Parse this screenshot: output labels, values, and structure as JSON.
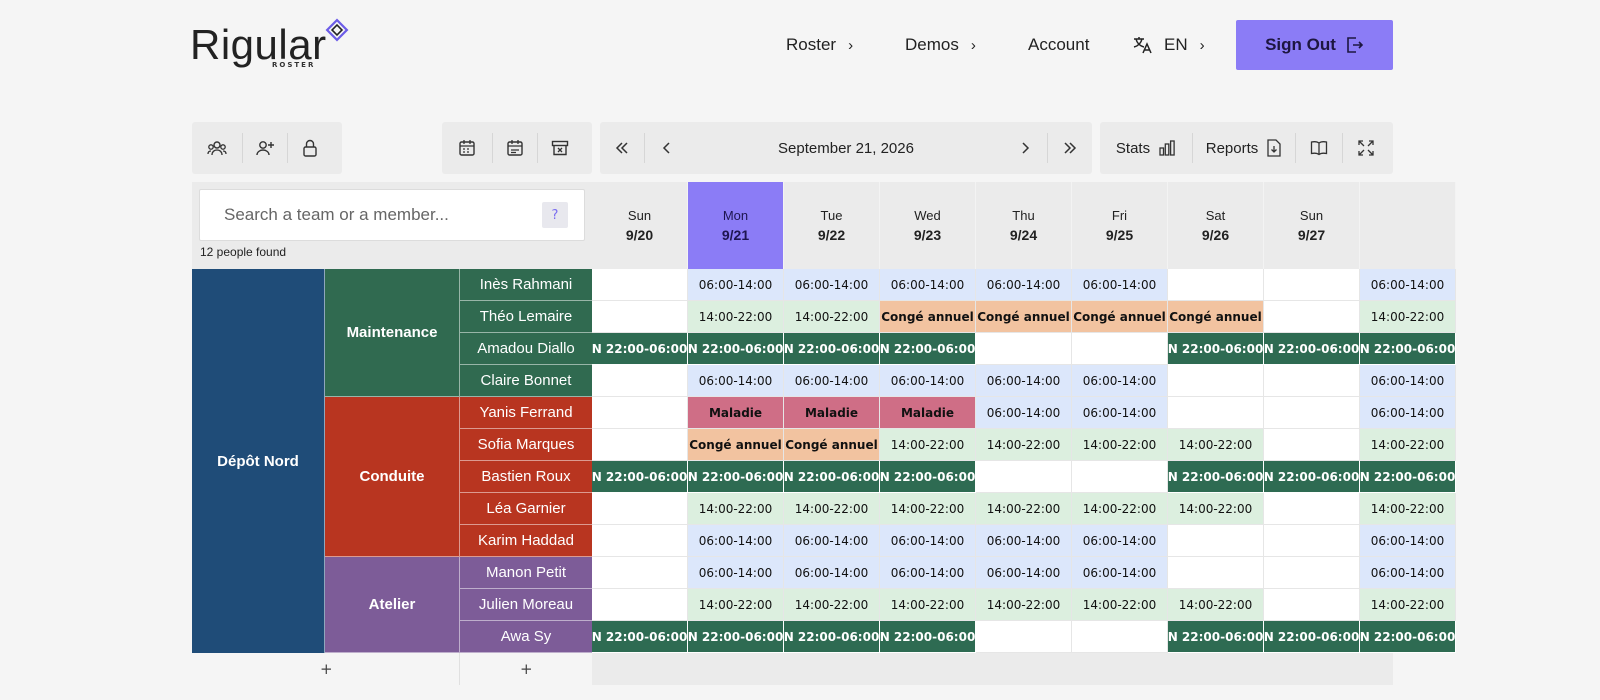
{
  "brand": {
    "name": "Rigular",
    "sub": "ROSTER"
  },
  "nav": {
    "roster": "Roster",
    "demos": "Demos",
    "account": "Account",
    "lang": "EN",
    "sign_out": "Sign Out"
  },
  "toolbar": {
    "date": "September 21, 2026",
    "stats": "Stats",
    "reports": "Reports"
  },
  "search": {
    "placeholder": "Search a team or a member...",
    "help": "?",
    "found": "12 people found"
  },
  "days": [
    {
      "name": "Sun",
      "date": "9/20"
    },
    {
      "name": "Mon",
      "date": "9/21"
    },
    {
      "name": "Tue",
      "date": "9/22"
    },
    {
      "name": "Wed",
      "date": "9/23"
    },
    {
      "name": "Thu",
      "date": "9/24"
    },
    {
      "name": "Fri",
      "date": "9/25"
    },
    {
      "name": "Sat",
      "date": "9/26"
    },
    {
      "name": "Sun",
      "date": "9/27"
    },
    {
      "name": "",
      "date": ""
    }
  ],
  "today_index": 1,
  "depot": "Dépôt Nord",
  "teams": [
    {
      "name": "Maintenance",
      "color": "#306a50",
      "members": 4
    },
    {
      "name": "Conduite",
      "color": "#b83520",
      "members": 5
    },
    {
      "name": "Atelier",
      "color": "#7d5c98",
      "members": 3
    }
  ],
  "members": [
    {
      "name": "Inès Rahmani",
      "team": 0,
      "shifts": [
        "",
        "06:00-14:00",
        "06:00-14:00",
        "06:00-14:00",
        "06:00-14:00",
        "06:00-14:00",
        "",
        "",
        "06:00-14:00"
      ]
    },
    {
      "name": "Théo Lemaire",
      "team": 0,
      "shifts": [
        "",
        "14:00-22:00",
        "14:00-22:00",
        "Congé annuel",
        "Congé annuel",
        "Congé annuel",
        "Congé annuel",
        "",
        "14:00-22:00"
      ]
    },
    {
      "name": "Amadou Diallo",
      "team": 0,
      "shifts": [
        "N 22:00-06:00",
        "N 22:00-06:00",
        "N 22:00-06:00",
        "N 22:00-06:00",
        "",
        "",
        "N 22:00-06:00",
        "N 22:00-06:00",
        "N 22:00-06:00"
      ]
    },
    {
      "name": "Claire Bonnet",
      "team": 0,
      "shifts": [
        "",
        "06:00-14:00",
        "06:00-14:00",
        "06:00-14:00",
        "06:00-14:00",
        "06:00-14:00",
        "",
        "",
        "06:00-14:00"
      ]
    },
    {
      "name": "Yanis Ferrand",
      "team": 1,
      "shifts": [
        "",
        "Maladie",
        "Maladie",
        "Maladie",
        "06:00-14:00",
        "06:00-14:00",
        "",
        "",
        "06:00-14:00"
      ]
    },
    {
      "name": "Sofia Marques",
      "team": 1,
      "shifts": [
        "",
        "Congé annuel",
        "Congé annuel",
        "14:00-22:00",
        "14:00-22:00",
        "14:00-22:00",
        "14:00-22:00",
        "",
        "14:00-22:00"
      ]
    },
    {
      "name": "Bastien Roux",
      "team": 1,
      "shifts": [
        "N 22:00-06:00",
        "N 22:00-06:00",
        "N 22:00-06:00",
        "N 22:00-06:00",
        "",
        "",
        "N 22:00-06:00",
        "N 22:00-06:00",
        "N 22:00-06:00"
      ]
    },
    {
      "name": "Léa Garnier",
      "team": 1,
      "shifts": [
        "",
        "14:00-22:00",
        "14:00-22:00",
        "14:00-22:00",
        "14:00-22:00",
        "14:00-22:00",
        "14:00-22:00",
        "",
        "14:00-22:00"
      ]
    },
    {
      "name": "Karim Haddad",
      "team": 1,
      "shifts": [
        "",
        "06:00-14:00",
        "06:00-14:00",
        "06:00-14:00",
        "06:00-14:00",
        "06:00-14:00",
        "",
        "",
        "06:00-14:00"
      ]
    },
    {
      "name": "Manon Petit",
      "team": 2,
      "shifts": [
        "",
        "06:00-14:00",
        "06:00-14:00",
        "06:00-14:00",
        "06:00-14:00",
        "06:00-14:00",
        "",
        "",
        "06:00-14:00"
      ]
    },
    {
      "name": "Julien Moreau",
      "team": 2,
      "shifts": [
        "",
        "14:00-22:00",
        "14:00-22:00",
        "14:00-22:00",
        "14:00-22:00",
        "14:00-22:00",
        "14:00-22:00",
        "",
        "14:00-22:00"
      ]
    },
    {
      "name": "Awa Sy",
      "team": 2,
      "shifts": [
        "N 22:00-06:00",
        "N 22:00-06:00",
        "N 22:00-06:00",
        "N 22:00-06:00",
        "",
        "",
        "N 22:00-06:00",
        "N 22:00-06:00",
        "N 22:00-06:00"
      ]
    }
  ],
  "colors": {
    "accent": "#8b7cf6",
    "depot": "#1f4c78",
    "day_shift": "#dce7fb",
    "evening_shift": "#dcefdf",
    "night_shift": "#2e6b52",
    "leave": "#f2c3a0",
    "sick": "#cf6e86"
  },
  "icons": {
    "toolbar_left": [
      "team-icon",
      "add-member-icon",
      "lock-icon"
    ],
    "toolbar_mid": [
      "calendar-icon",
      "calendar-edit-icon",
      "archive-icon"
    ],
    "toolbar_nav": [
      "double-chevron-left-icon",
      "chevron-left-icon",
      "chevron-right-icon",
      "double-chevron-right-icon"
    ],
    "toolbar_right": [
      "bar-chart-icon",
      "file-download-icon",
      "book-icon",
      "fullscreen-icon"
    ]
  }
}
